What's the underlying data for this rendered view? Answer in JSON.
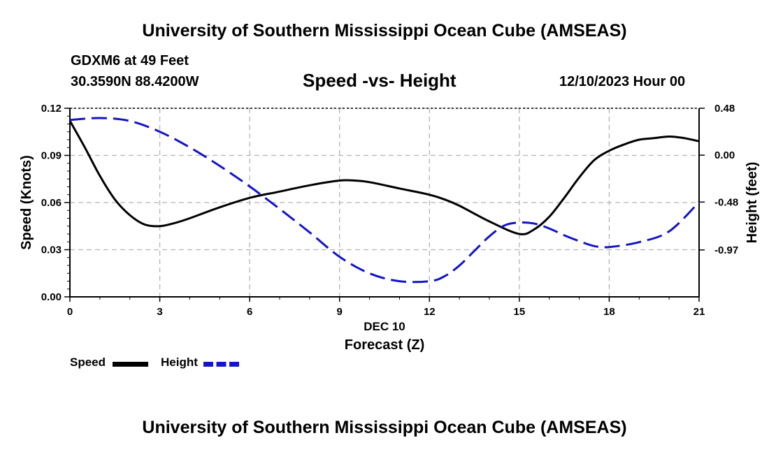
{
  "header": {
    "title": "University of Southern Mississippi Ocean Cube (AMSEAS)",
    "station": "GDXM6 at 49 Feet",
    "coords": "30.3590N  88.4200W",
    "subtitle": "Speed -vs- Height",
    "date": "12/10/2023 Hour 00"
  },
  "footer": {
    "title": "University of Southern Mississippi Ocean Cube (AMSEAS)"
  },
  "legend": {
    "speed_label": "Speed",
    "height_label": "Height"
  },
  "colors": {
    "speed": "#000000",
    "height": "#1414c8",
    "grid": "#b4b4b4"
  },
  "chart_data": {
    "type": "line",
    "title": "Speed -vs- Height",
    "xlabel": "Forecast (Z)",
    "xlabel_date": "DEC 10",
    "xlim": [
      0,
      21
    ],
    "x_ticks": [
      0,
      3,
      6,
      9,
      12,
      15,
      18,
      21
    ],
    "x_tick_labels": [
      "0",
      "3",
      "6",
      "9",
      "12",
      "15",
      "18",
      "21"
    ],
    "left_axis": {
      "label": "Speed (Knots)",
      "lim": [
        0,
        0.12
      ],
      "ticks": [
        0,
        0.03,
        0.06,
        0.09,
        0.12
      ],
      "tick_labels": [
        "0.00",
        "0.03",
        "0.06",
        "0.09",
        "0.12"
      ]
    },
    "right_axis": {
      "label": "Height (feet)",
      "lim": [
        -1.45,
        0.48
      ],
      "ticks": [
        0.48,
        0.0,
        -0.48,
        -0.97
      ],
      "tick_labels": [
        "0.48",
        "0.00",
        "-0.48",
        "-0.97"
      ]
    },
    "grid": true,
    "series": [
      {
        "name": "Speed",
        "axis": "left",
        "style": "solid",
        "x": [
          0,
          0.5,
          1,
          1.5,
          2,
          2.5,
          3,
          3.5,
          4,
          5,
          6,
          7,
          8,
          9,
          9.5,
          10,
          11,
          12,
          12.5,
          13,
          14,
          15,
          15.5,
          16,
          16.5,
          17,
          17.5,
          18,
          18.5,
          19,
          19.5,
          20,
          20.5,
          21
        ],
        "values": [
          0.112,
          0.095,
          0.077,
          0.062,
          0.052,
          0.046,
          0.045,
          0.047,
          0.05,
          0.057,
          0.063,
          0.067,
          0.071,
          0.074,
          0.074,
          0.073,
          0.069,
          0.065,
          0.062,
          0.058,
          0.048,
          0.04,
          0.043,
          0.051,
          0.063,
          0.076,
          0.087,
          0.093,
          0.097,
          0.1,
          0.101,
          0.102,
          0.101,
          0.099
        ]
      },
      {
        "name": "Height",
        "axis": "right",
        "style": "dashed",
        "x": [
          0,
          1,
          2,
          3,
          4,
          5,
          6,
          7,
          8,
          9,
          10,
          11,
          12,
          12.5,
          13,
          13.5,
          14,
          14.5,
          15,
          15.5,
          16,
          16.5,
          17,
          17.5,
          18,
          19,
          20,
          21
        ],
        "values": [
          0.36,
          0.38,
          0.35,
          0.24,
          0.08,
          -0.11,
          -0.32,
          -0.55,
          -0.79,
          -1.04,
          -1.21,
          -1.29,
          -1.29,
          -1.24,
          -1.13,
          -0.98,
          -0.83,
          -0.72,
          -0.69,
          -0.7,
          -0.75,
          -0.82,
          -0.88,
          -0.93,
          -0.94,
          -0.89,
          -0.78,
          -0.48
        ]
      }
    ]
  }
}
